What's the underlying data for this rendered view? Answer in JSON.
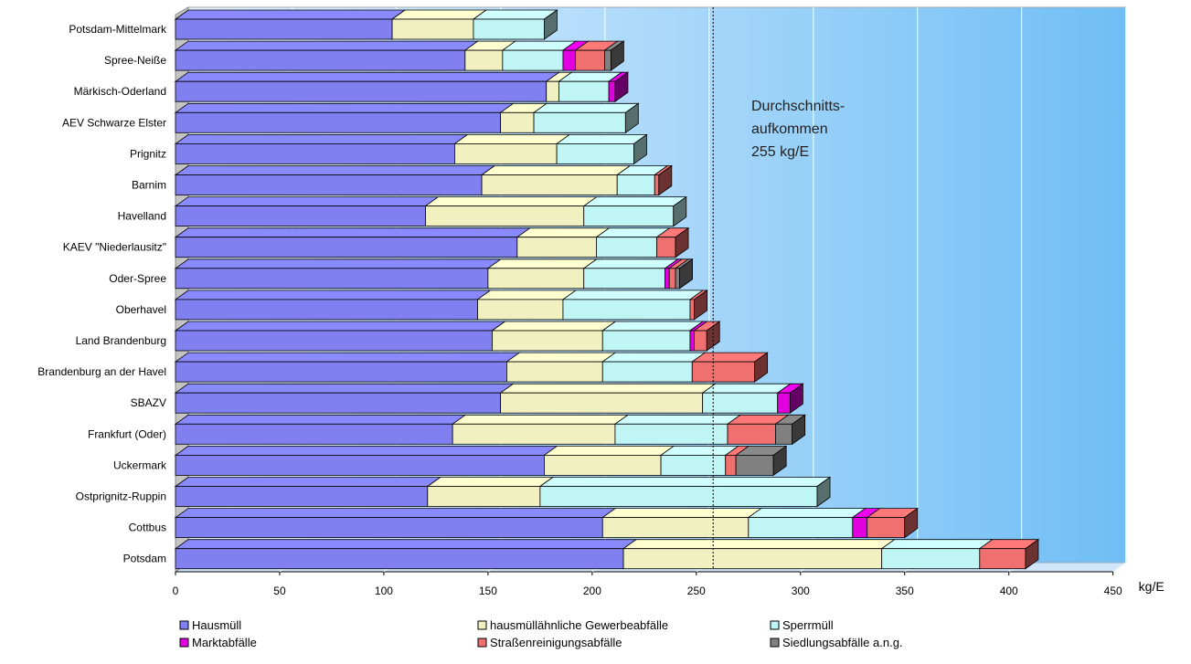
{
  "chart_data": {
    "type": "bar",
    "orientation": "horizontal",
    "stacked": true,
    "style": "3d",
    "xlim": [
      0,
      450
    ],
    "x_ticks": [
      "0",
      "50",
      "100",
      "150",
      "200",
      "250",
      "300",
      "350",
      "400",
      "450"
    ],
    "x_unit": "kg/E",
    "grid": true,
    "legend_placement": "bottom",
    "background_gradient": [
      "#e8f3ff",
      "#6fbef5"
    ],
    "categories": [
      "Potsdam-Mittelmark",
      "Spree-Neiße",
      "Märkisch-Oderland",
      "AEV Schwarze Elster",
      "Prignitz",
      "Barnim",
      "Havelland",
      "KAEV \"Niederlausitz\"",
      "Oder-Spree",
      "Oberhavel",
      "Land Brandenburg",
      "Brandenburg an der Havel",
      "SBAZV",
      "Frankfurt (Oder)",
      "Uckermark",
      "Ostprignitz-Ruppin",
      "Cottbus",
      "Potsdam"
    ],
    "series": [
      {
        "name": "Hausmüll",
        "color": "#8080f0",
        "values": [
          104,
          139,
          178,
          156,
          134,
          147,
          120,
          164,
          150,
          145,
          152,
          159,
          156,
          133,
          177,
          121,
          205,
          215
        ]
      },
      {
        "name": "hausmüllähnliche Gewerbeabfälle",
        "color": "#f0f0c0",
        "values": [
          39,
          18,
          6,
          16,
          49,
          65,
          76,
          38,
          46,
          41,
          53,
          46,
          97,
          78,
          56,
          54,
          70,
          124
        ]
      },
      {
        "name": "Sperrmüll",
        "color": "#c0f5f5",
        "values": [
          34,
          29,
          24,
          44,
          37,
          18,
          43,
          29,
          39,
          61,
          42,
          43,
          36,
          54,
          31,
          133,
          50,
          47
        ]
      },
      {
        "name": "Marktabfälle",
        "color": "#e000e0",
        "values": [
          0,
          6,
          3,
          0,
          0,
          0,
          0,
          0,
          2,
          0,
          2,
          0,
          6,
          0,
          0,
          0,
          7,
          0
        ]
      },
      {
        "name": "Straßenreinigungsabfälle",
        "color": "#f07070",
        "values": [
          0,
          14,
          0,
          0,
          0,
          2,
          0,
          9,
          3,
          2,
          6,
          30,
          0,
          23,
          5,
          0,
          18,
          22
        ]
      },
      {
        "name": "Siedlungsabfälle a.n.g.",
        "color": "#808080",
        "values": [
          0,
          3,
          0,
          0,
          0,
          0,
          0,
          0,
          2,
          0,
          0,
          0,
          0,
          8,
          18,
          0,
          0,
          0
        ]
      }
    ],
    "reference_line": {
      "value": 255,
      "text": [
        "Durchschnitts-",
        "aufkommen",
        "255 kg/E"
      ]
    }
  }
}
